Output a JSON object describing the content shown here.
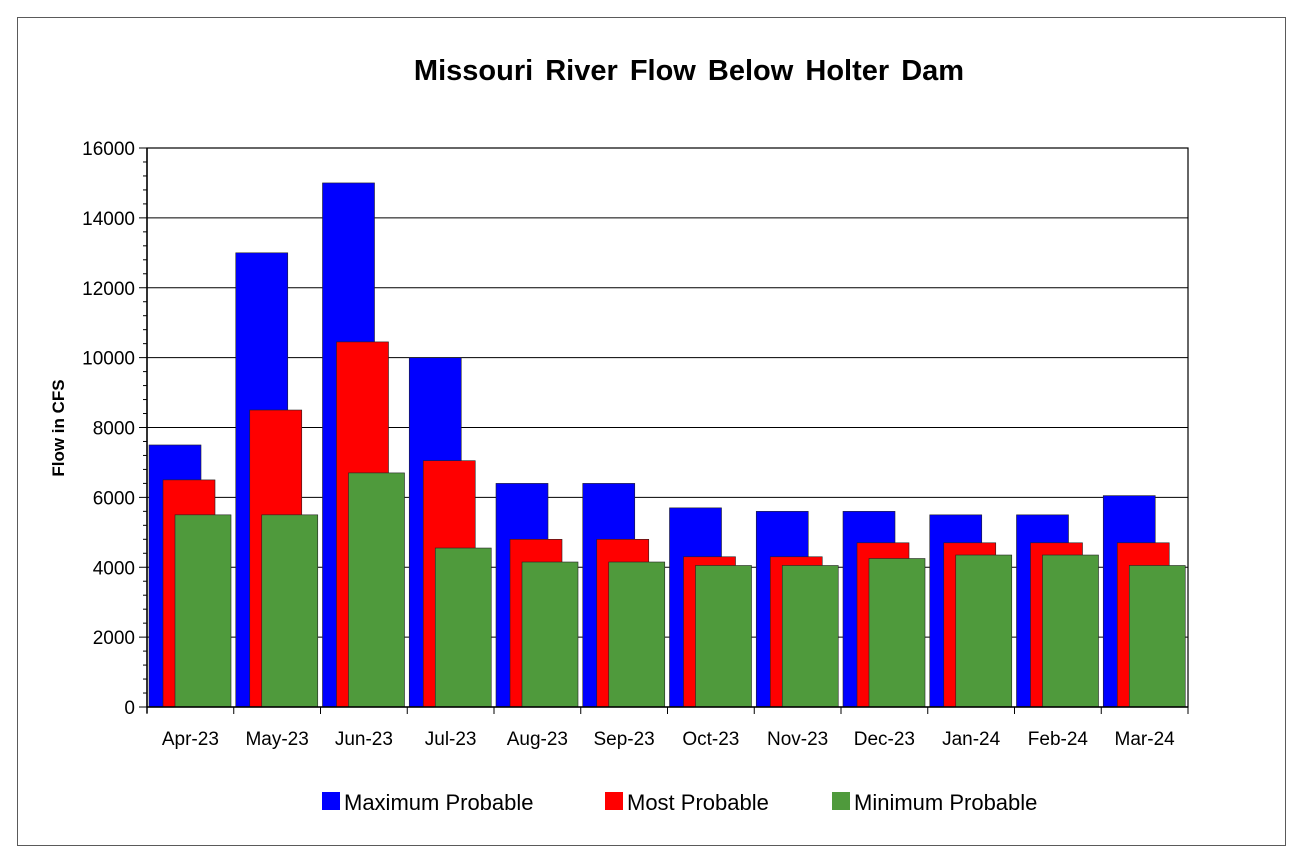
{
  "chart_data": {
    "type": "bar",
    "title": "Missouri River Flow Below Holter Dam",
    "xlabel": "",
    "ylabel": "Flow in CFS",
    "ylim": [
      0,
      16000
    ],
    "yticks": [
      "0",
      "2000",
      "4000",
      "6000",
      "8000",
      "10000",
      "12000",
      "14000",
      "16000"
    ],
    "grid": true,
    "legend_position": "bottom",
    "categories": [
      "Apr-23",
      "May-23",
      "Jun-23",
      "Jul-23",
      "Aug-23",
      "Sep-23",
      "Oct-23",
      "Nov-23",
      "Dec-23",
      "Jan-24",
      "Feb-24",
      "Mar-24"
    ],
    "series": [
      {
        "name": "Maximum Probable",
        "color": "#0000ff",
        "values": [
          7500,
          13000,
          15000,
          10000,
          6400,
          6400,
          5700,
          5600,
          5600,
          5500,
          5500,
          6050
        ]
      },
      {
        "name": "Most Probable",
        "color": "#ff0000",
        "values": [
          6500,
          8500,
          10450,
          7050,
          4800,
          4800,
          4300,
          4300,
          4700,
          4700,
          4700,
          4700
        ]
      },
      {
        "name": "Minimum Probable",
        "color": "#4f9a3c",
        "values": [
          5500,
          5500,
          6700,
          4550,
          4150,
          4150,
          4050,
          4050,
          4250,
          4350,
          4350,
          4050
        ]
      }
    ]
  }
}
